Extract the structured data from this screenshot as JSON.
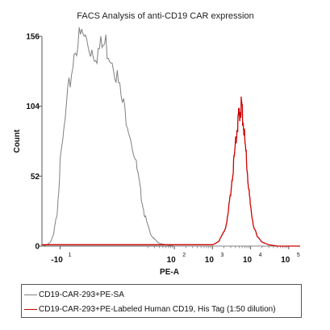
{
  "chart_data": {
    "type": "area",
    "title": "FACS Analysis of anti-CD19 CAR expression",
    "xlabel": "PE-A",
    "ylabel": "Count",
    "xscale": "biexponential",
    "xlim": [
      -30,
      200000
    ],
    "ylim": [
      0,
      156
    ],
    "yticks": [
      0,
      52,
      104,
      156
    ],
    "xticks": [
      {
        "base": "-10",
        "exp": "1"
      },
      {
        "base": "10",
        "exp": "2"
      },
      {
        "base": "10",
        "exp": "3"
      },
      {
        "base": "10",
        "exp": "4"
      },
      {
        "base": "10",
        "exp": "5"
      }
    ],
    "grid": false,
    "legend_position": "bottom",
    "series": [
      {
        "name": "CD19-CAR-293+PE-SA",
        "color": "#808080",
        "x": [
          -30,
          -22,
          -18,
          -15,
          -12,
          -10,
          -8,
          -6,
          -4,
          -2,
          0,
          2,
          4,
          6,
          8,
          10,
          13,
          16,
          20,
          25,
          30,
          40,
          60,
          100,
          200,
          500,
          1000,
          5000,
          20000,
          100000,
          200000
        ],
        "y": [
          0,
          1,
          3,
          8,
          25,
          60,
          110,
          150,
          156,
          148,
          145,
          150,
          140,
          110,
          90,
          60,
          40,
          25,
          15,
          8,
          5,
          2,
          1,
          0,
          0,
          0,
          0,
          0,
          0,
          0,
          0
        ]
      },
      {
        "name": "CD19-CAR-293+PE-Labeled Human CD19, His Tag (1:50 dilution)",
        "color": "#cc0000",
        "x": [
          -30,
          0,
          100,
          500,
          800,
          1000,
          1200,
          1500,
          1800,
          2200,
          2600,
          3000,
          3500,
          4000,
          4400,
          4800,
          5200,
          5600,
          6000,
          6500,
          7000,
          8000,
          9000,
          10000,
          12000,
          15000,
          20000,
          30000,
          50000,
          200000
        ],
        "y": [
          1,
          1,
          1,
          1,
          1,
          1,
          2,
          4,
          8,
          14,
          25,
          40,
          58,
          75,
          88,
          95,
          100,
          104,
          100,
          92,
          80,
          60,
          42,
          28,
          15,
          7,
          3,
          1,
          0,
          0
        ]
      }
    ]
  }
}
